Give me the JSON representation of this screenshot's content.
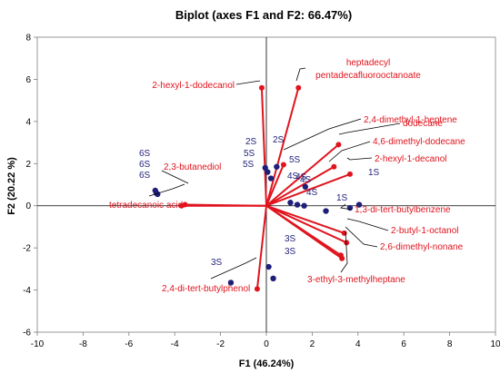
{
  "chart_data": {
    "type": "scatter",
    "title": "Biplot (axes F1 and F2: 66.47%)",
    "xlabel": "F1 (46.24%)",
    "ylabel": "F2 (20.22 %)",
    "xlim": [
      -10,
      10
    ],
    "ylim": [
      -6,
      8
    ],
    "xticks": [
      -10,
      -8,
      -6,
      -4,
      -2,
      0,
      2,
      4,
      6,
      8,
      10
    ],
    "yticks": [
      -6,
      -4,
      -2,
      0,
      2,
      4,
      6,
      8
    ],
    "grid": false,
    "colors": {
      "observations": "#1f1f7a",
      "variables": "#e0141e",
      "leaders": "#000000"
    },
    "observations": [
      {
        "label": "6S",
        "x": -4.85,
        "y": 0.72
      },
      {
        "label": "6S",
        "x": -4.8,
        "y": 0.6
      },
      {
        "label": "6S",
        "x": -4.75,
        "y": 0.55
      },
      {
        "label": "2S",
        "x": -0.05,
        "y": 1.8
      },
      {
        "label": "5S",
        "x": 0.05,
        "y": 1.6
      },
      {
        "label": "5S",
        "x": 0.2,
        "y": 1.3
      },
      {
        "label": "2S",
        "x": 0.45,
        "y": 1.85
      },
      {
        "label": "5S",
        "x": 1.7,
        "y": 0.9
      },
      {
        "label": "4S",
        "x": 1.65,
        "y": 0.0
      },
      {
        "label": "4S",
        "x": 1.35,
        "y": 0.05
      },
      {
        "label": "4S",
        "x": 1.05,
        "y": 0.15
      },
      {
        "label": "4S",
        "x": 2.6,
        "y": -0.25
      },
      {
        "label": "1S",
        "x": 3.65,
        "y": -0.1
      },
      {
        "label": "1S",
        "x": 4.05,
        "y": 0.05
      },
      {
        "label": "3S",
        "x": 0.1,
        "y": -2.9
      },
      {
        "label": "3S",
        "x": 0.3,
        "y": -3.45
      },
      {
        "label": "3S",
        "x": -1.55,
        "y": -3.65
      }
    ],
    "variables": [
      {
        "label": "2-hexyl-1-dodecanol",
        "x": -0.2,
        "y": 5.6
      },
      {
        "label": "heptadecyl pentadecafluorooctanoate",
        "x": 1.4,
        "y": 5.6
      },
      {
        "label": "2,4-dimethyl-1-heptene",
        "x": 0.75,
        "y": 1.95
      },
      {
        "label": "dodecane",
        "x": 3.15,
        "y": 2.9
      },
      {
        "label": "4,6-dimethyl-dodecane",
        "x": 2.95,
        "y": 1.85
      },
      {
        "label": "2-hexyl-1-decanol",
        "x": 3.65,
        "y": 1.5
      },
      {
        "label": "2,3-butanediol",
        "x": -3.55,
        "y": 0.05
      },
      {
        "label": "tetradecanoic acid",
        "x": -3.7,
        "y": 0.0
      },
      {
        "label": "1,3-di-tert-butylbenzene",
        "x": 3.4,
        "y": -1.3
      },
      {
        "label": "2-butyl-1-octanol",
        "x": 3.5,
        "y": -1.75
      },
      {
        "label": "2,6-dimethyl-nonane",
        "x": 3.25,
        "y": -2.35
      },
      {
        "label": "3-ethyl-3-methylheptane",
        "x": 3.3,
        "y": -2.5
      },
      {
        "label": "2,4-di-tert-butylphenol",
        "x": -0.4,
        "y": -3.95
      }
    ]
  }
}
